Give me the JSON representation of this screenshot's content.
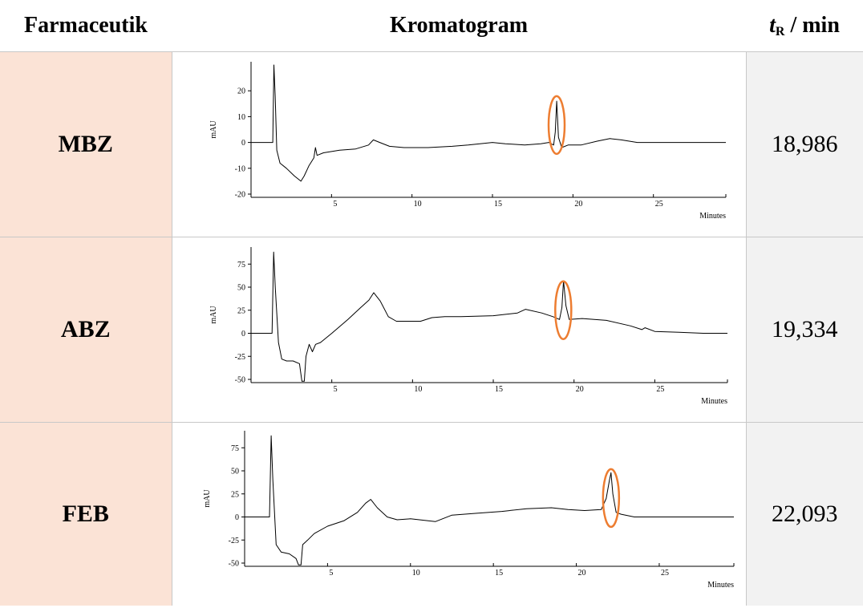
{
  "header": {
    "col1": "Farmaceutik",
    "col2": "Kromatogram",
    "col3_t": "t",
    "col3_sub": "R",
    "col3_rest": " / min"
  },
  "colors": {
    "drug_cell_bg": "#fbe3d6",
    "rt_cell_bg": "#f2f2f2",
    "trace": "#000000",
    "peak_marker": "#ed7d31"
  },
  "rows": [
    {
      "drug": "MBZ",
      "rt": "18,986"
    },
    {
      "drug": "ABZ",
      "rt": "19,334"
    },
    {
      "drug": "FEB",
      "rt": "22,093"
    }
  ],
  "chart_data": [
    {
      "type": "line",
      "ylabel": "mAU",
      "xlabel": "Minutes",
      "xlim": [
        0,
        29.5
      ],
      "ylim": [
        -20,
        30
      ],
      "xticks": [
        5,
        10,
        15,
        20,
        25
      ],
      "yticks": [
        20,
        10,
        0,
        -10,
        -20
      ],
      "grid": false,
      "highlighted_peak_x": 18.986,
      "series": [
        {
          "x": [
            0,
            1.35,
            1.42,
            1.5,
            1.6,
            1.8,
            2.2,
            2.7,
            3.1,
            3.3,
            3.6,
            3.9,
            4.0,
            4.1,
            4.5,
            5.5,
            6.5,
            7.3,
            7.6,
            8.0,
            8.6,
            9.5,
            11,
            12.5,
            13.5,
            15,
            15.8,
            17,
            18,
            18.5,
            18.8,
            18.9,
            18.99,
            19.1,
            19.3,
            19.7,
            20.5,
            21.5,
            22.3,
            23,
            24,
            25,
            26.5,
            28,
            29.5
          ],
          "y": [
            0,
            0,
            30,
            18,
            -3,
            -8,
            -10,
            -13,
            -15,
            -13,
            -9,
            -6,
            -2,
            -5,
            -4,
            -3,
            -2.5,
            -1,
            1,
            0,
            -1.5,
            -2,
            -2,
            -1.5,
            -1,
            0,
            -0.5,
            -1,
            -0.5,
            0,
            -1,
            4,
            16,
            2,
            -2,
            -1,
            -1,
            0.5,
            1.5,
            1,
            0,
            0,
            0,
            0,
            0
          ]
        }
      ]
    },
    {
      "type": "line",
      "ylabel": "mAU",
      "xlabel": "Minutes",
      "xlim": [
        0,
        29.5
      ],
      "ylim": [
        -50,
        90
      ],
      "xticks": [
        5,
        10,
        15,
        20,
        25
      ],
      "yticks": [
        75,
        50,
        25,
        0,
        -25,
        -50
      ],
      "grid": false,
      "highlighted_peak_x": 19.334,
      "series": [
        {
          "x": [
            0,
            1.3,
            1.4,
            1.5,
            1.7,
            1.9,
            2.2,
            2.6,
            3.0,
            3.15,
            3.3,
            3.4,
            3.6,
            3.8,
            4.0,
            4.3,
            5,
            6,
            6.8,
            7.3,
            7.6,
            8.0,
            8.5,
            9,
            10.5,
            11.2,
            12,
            13,
            15,
            16.5,
            17,
            18,
            18.7,
            19.1,
            19.25,
            19.35,
            19.5,
            19.7,
            20.5,
            22,
            23.5,
            24.2,
            24.4,
            25,
            26.5,
            28,
            29.5
          ],
          "y": [
            0,
            0,
            88,
            50,
            -10,
            -28,
            -30,
            -30,
            -33,
            -52,
            -52,
            -25,
            -12,
            -20,
            -12,
            -10,
            0,
            15,
            28,
            36,
            44,
            35,
            18,
            13,
            13,
            17,
            18,
            18,
            19,
            22,
            26,
            22,
            18,
            15,
            28,
            57,
            30,
            15,
            16,
            14,
            8,
            4,
            6,
            2,
            1,
            0,
            0
          ]
        }
      ]
    },
    {
      "type": "line",
      "ylabel": "mAU",
      "xlabel": "Minutes",
      "xlim": [
        0,
        29.5
      ],
      "ylim": [
        -50,
        90
      ],
      "xticks": [
        5,
        10,
        15,
        20,
        25
      ],
      "yticks": [
        75,
        50,
        25,
        0,
        -25,
        -50
      ],
      "grid": false,
      "highlighted_peak_x": 22.093,
      "series": [
        {
          "x": [
            0,
            1.5,
            1.6,
            1.7,
            1.9,
            2.2,
            2.7,
            3.1,
            3.25,
            3.4,
            3.5,
            3.8,
            4.2,
            5,
            6,
            6.8,
            7.3,
            7.6,
            8.0,
            8.6,
            9.2,
            10,
            11.5,
            12.5,
            14,
            15.5,
            17,
            18.5,
            19.5,
            20.5,
            21.5,
            21.8,
            22.0,
            22.09,
            22.2,
            22.4,
            22.7,
            23.5,
            25,
            26,
            28,
            29.5
          ],
          "y": [
            0,
            0,
            88,
            40,
            -30,
            -38,
            -40,
            -45,
            -52,
            -52,
            -30,
            -25,
            -18,
            -10,
            -4,
            5,
            15,
            19,
            10,
            0,
            -3,
            -2,
            -5,
            2,
            4,
            6,
            9,
            10,
            8,
            7,
            8,
            20,
            40,
            48,
            25,
            5,
            3,
            0,
            0,
            0,
            0,
            0
          ]
        }
      ]
    }
  ]
}
